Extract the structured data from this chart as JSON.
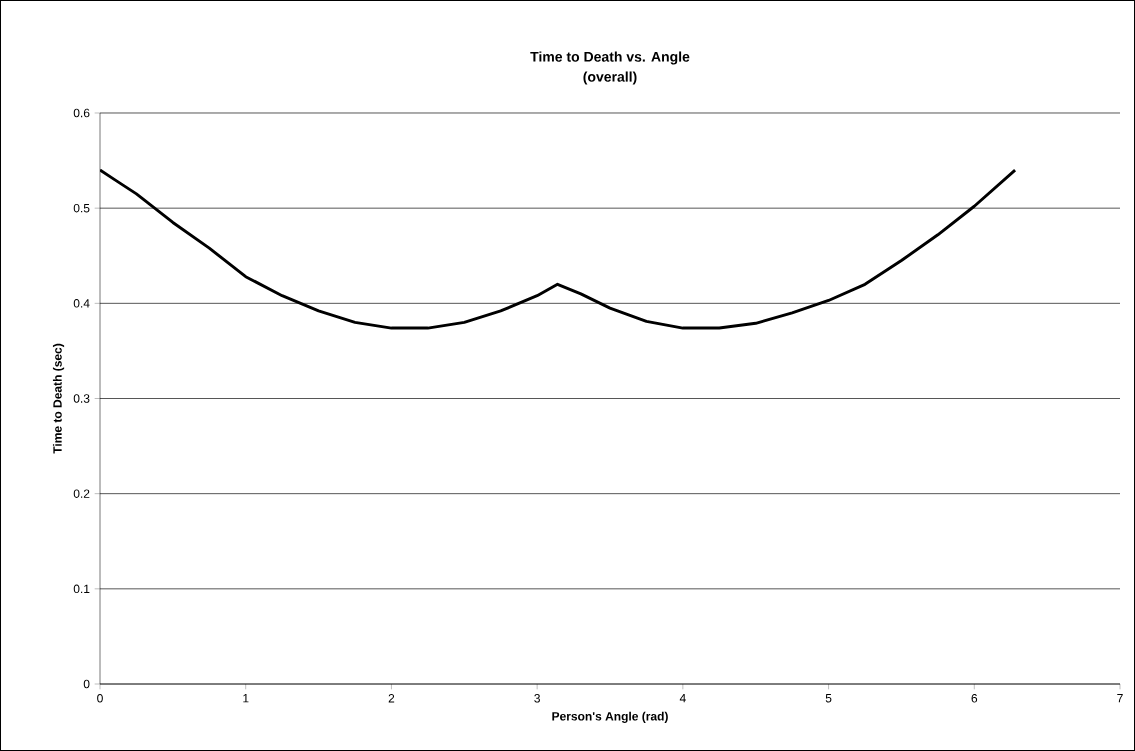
{
  "chart_data": {
    "type": "line",
    "title": "Time to Death vs. Angle",
    "subtitle": "(overall)",
    "xlabel": "Person's Angle (rad)",
    "ylabel": "Time to Death (sec)",
    "x": [
      0,
      0.1,
      0.25,
      0.5,
      0.75,
      1,
      1.25,
      1.5,
      1.75,
      2,
      2.25,
      2.5,
      2.75,
      3,
      3.14,
      3.3,
      3.5,
      3.75,
      4,
      4.25,
      4.5,
      4.75,
      5,
      5.25,
      5.5,
      5.75,
      6,
      6.28
    ],
    "values": [
      0.54,
      0.53,
      0.515,
      0.485,
      0.458,
      0.428,
      0.408,
      0.392,
      0.38,
      0.374,
      0.374,
      0.38,
      0.392,
      0.408,
      0.42,
      0.41,
      0.395,
      0.381,
      0.374,
      0.374,
      0.379,
      0.39,
      0.403,
      0.42,
      0.445,
      0.472,
      0.502,
      0.54
    ],
    "color": "#000000",
    "marker": "none",
    "line_style": "solid",
    "grid": "y",
    "xlim": [
      0,
      7
    ],
    "xticks": [
      0,
      1,
      2,
      3,
      4,
      5,
      6,
      7
    ],
    "ylim": [
      0,
      0.6
    ],
    "yticks": [
      0,
      0.1,
      0.2,
      0.3,
      0.4,
      0.5,
      0.6
    ]
  }
}
